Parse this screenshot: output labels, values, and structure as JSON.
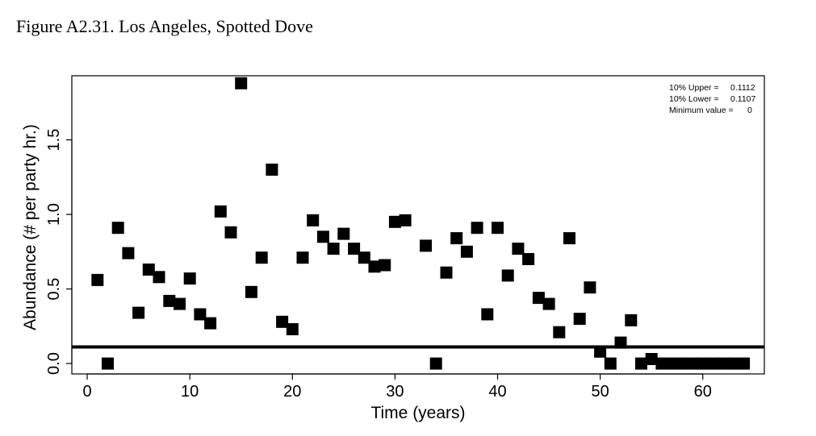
{
  "figure_title": "Figure A2.31. Los Angeles, Spotted Dove",
  "chart_data": {
    "type": "scatter",
    "title": "",
    "xlabel": "Time (years)",
    "ylabel": "Abundance (# per party hr.)",
    "xlim": [
      -1.5,
      66
    ],
    "ylim": [
      -0.07,
      1.93
    ],
    "x_ticks": [
      0,
      10,
      20,
      30,
      40,
      50,
      60
    ],
    "y_ticks": [
      0.0,
      0.5,
      1.0,
      1.5
    ],
    "y_tick_labels": [
      "0.0",
      "0.5",
      "1.0",
      "1.5"
    ],
    "grid": false,
    "marker": "square",
    "marker_color": "#000000",
    "reference_line": {
      "y": 0.111
    },
    "annotations": [
      {
        "label": "10% Upper =",
        "value": "0.1112"
      },
      {
        "label": "10% Lower =",
        "value": "0.1107"
      },
      {
        "label": "Minimum value =",
        "value": "0"
      }
    ],
    "annotation_position": "top-right",
    "x": [
      1,
      2,
      3,
      4,
      5,
      6,
      7,
      8,
      9,
      10,
      11,
      12,
      13,
      14,
      15,
      16,
      17,
      18,
      19,
      20,
      21,
      22,
      23,
      24,
      25,
      26,
      27,
      28,
      29,
      30,
      31,
      33,
      34,
      35,
      36,
      37,
      38,
      39,
      40,
      41,
      42,
      43,
      44,
      45,
      46,
      47,
      48,
      49,
      50,
      51,
      52,
      53,
      54,
      55,
      56,
      57,
      58,
      59,
      60,
      61,
      62,
      63,
      64
    ],
    "y": [
      0.56,
      0.0,
      0.91,
      0.74,
      0.34,
      0.63,
      0.58,
      0.42,
      0.4,
      0.57,
      0.33,
      0.27,
      1.02,
      0.88,
      1.88,
      0.48,
      0.71,
      1.3,
      0.28,
      0.23,
      0.71,
      0.96,
      0.85,
      0.77,
      0.87,
      0.77,
      0.71,
      0.65,
      0.66,
      0.95,
      0.96,
      0.79,
      0.0,
      0.61,
      0.84,
      0.75,
      0.91,
      0.33,
      0.91,
      0.59,
      0.77,
      0.7,
      0.44,
      0.4,
      0.21,
      0.84,
      0.3,
      0.51,
      0.08,
      0.0,
      0.14,
      0.29,
      0.0,
      0.03,
      0.0,
      0.0,
      0.0,
      0.0,
      0.0,
      0.0,
      0.0,
      0.0,
      0.0
    ]
  }
}
